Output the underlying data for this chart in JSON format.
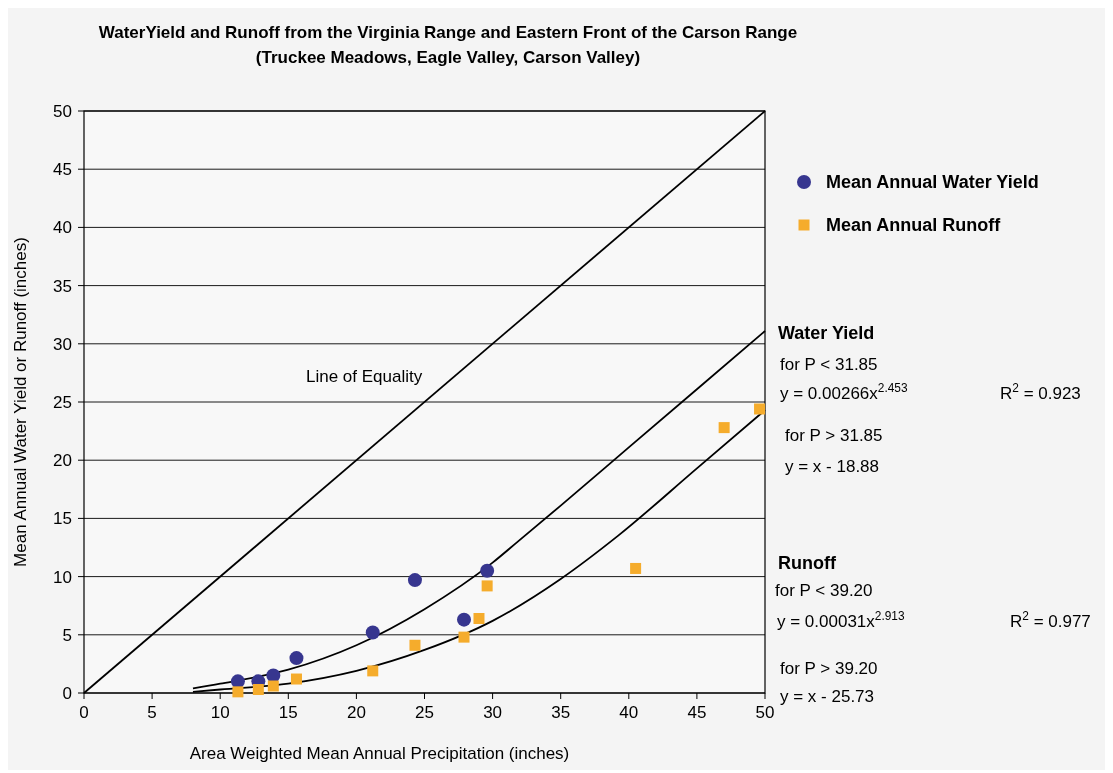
{
  "chart_data": {
    "type": "scatter",
    "title": "WaterYield and Runoff from the Virginia Range and Eastern Front of the Carson Range",
    "subtitle": "(Truckee Meadows, Eagle Valley, Carson Valley)",
    "xlabel": "Area Weighted Mean Annual Precipitation (inches)",
    "ylabel": "Mean Annual Water Yield or Runoff (inches)",
    "xlim": [
      0,
      50
    ],
    "xticks": [
      0,
      5,
      10,
      15,
      20,
      25,
      30,
      35,
      40,
      45,
      50
    ],
    "ylim": [
      0,
      50
    ],
    "yticks": [
      0,
      5,
      10,
      15,
      20,
      25,
      30,
      35,
      40,
      45,
      50
    ],
    "grid": "y",
    "legend": "right",
    "series": [
      {
        "name": "Mean Annual Water Yield",
        "marker": "circle",
        "color": "#37368f",
        "x": [
          11.3,
          12.8,
          13.9,
          15.6,
          21.2,
          24.3,
          27.9,
          29.6
        ],
        "values": [
          1.0,
          1.0,
          1.5,
          3.0,
          5.2,
          9.7,
          6.3,
          10.5
        ]
      },
      {
        "name": "Mean Annual Runoff",
        "marker": "square",
        "color": "#f5ac2c",
        "x": [
          11.3,
          12.8,
          13.9,
          15.6,
          21.2,
          24.3,
          27.9,
          29.0,
          29.6,
          40.5,
          47.0,
          49.6
        ],
        "values": [
          0.1,
          0.3,
          0.6,
          1.2,
          1.9,
          4.1,
          4.8,
          6.4,
          9.2,
          10.7,
          22.8,
          24.4
        ]
      },
      {
        "type": "line",
        "color": "#000000",
        "x": [
          0,
          50
        ],
        "values": [
          0,
          50
        ]
      },
      {
        "type": "line",
        "color": "#000000",
        "x": [
          8,
          10,
          15,
          20,
          25,
          30,
          31.85,
          35,
          40,
          45,
          50
        ],
        "values": [
          0.4,
          0.8,
          2.0,
          4.1,
          7.2,
          11.2,
          13.0,
          16.1,
          21.1,
          26.1,
          31.1
        ]
      },
      {
        "type": "line",
        "color": "#000000",
        "x": [
          8,
          10,
          15,
          20,
          25,
          30,
          35,
          39.2,
          45,
          50
        ],
        "values": [
          0.1,
          0.3,
          0.8,
          1.9,
          3.7,
          6.2,
          9.8,
          13.5,
          19.3,
          24.3
        ]
      }
    ],
    "annotations": [
      "Line of Equality",
      "Water Yield",
      "for P < 31.85",
      "y = 0.00266x$^{2.453}$",
      "R$^{2}$ = 0.923",
      "for P > 31.85",
      "y = x - 18.88",
      "Runoff",
      "for P < 39.20",
      "y = 0.00031x$^{2.913}$",
      "R$^{2}$ = 0.977",
      "for P > 39.20",
      "y = x - 25.73"
    ]
  }
}
